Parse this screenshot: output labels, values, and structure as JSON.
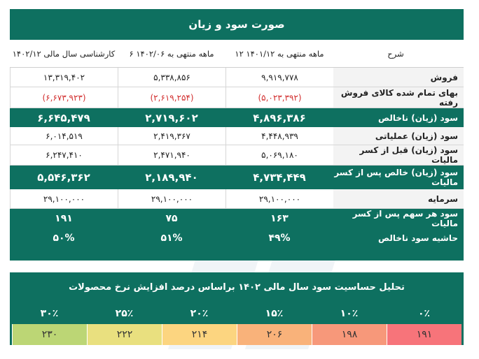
{
  "pl": {
    "title": "صورت سود و زیان",
    "headers": {
      "label": "شرح",
      "col1": "۱۲ ماهه منتهی به ۱۴۰۱/۱۲",
      "col2": "۶ ماهه منتهی به ۱۴۰۲/۰۶",
      "col3": "کارشناسی سال مالی ۱۴۰۲/۱۲"
    },
    "rows": [
      {
        "label": "فروش",
        "v1": "۹,۹۱۹,۷۷۸",
        "v2": "۵,۳۳۸,۸۵۶",
        "v3": "۱۳,۳۱۹,۴۰۲"
      },
      {
        "label": "بهای تمام شده کالای فروش رفته",
        "v1": "(۵,۰۲۳,۳۹۲)",
        "v2": "(۲,۶۱۹,۲۵۴)",
        "v3": "(۶,۶۷۳,۹۲۳)"
      },
      {
        "label": "سود (زیان) ناخالص",
        "v1": "۴,۸۹۶,۳۸۶",
        "v2": "۲,۷۱۹,۶۰۲",
        "v3": "۶,۶۴۵,۴۷۹"
      },
      {
        "label": "سود (زیان) عملیاتی",
        "v1": "۴,۴۴۸,۹۳۹",
        "v2": "۲,۴۱۹,۳۶۷",
        "v3": "۶,۰۱۴,۵۱۹"
      },
      {
        "label": "سود (زیان) قبل از کسر مالیات",
        "v1": "۵,۰۶۹,۱۸۰",
        "v2": "۲,۴۷۱,۹۴۰",
        "v3": "۶,۲۴۷,۴۱۰"
      },
      {
        "label": "سود (زیان) خالص پس از کسر مالیات",
        "v1": "۴,۷۳۴,۴۴۹",
        "v2": "۲,۱۸۹,۹۴۰",
        "v3": "۵,۵۴۶,۳۶۲"
      },
      {
        "label": "سرمایه",
        "v1": "۲۹,۱۰۰,۰۰۰",
        "v2": "۲۹,۱۰۰,۰۰۰",
        "v3": "۲۹,۱۰۰,۰۰۰"
      },
      {
        "label": "سود هر سهم پس از کسر مالیات",
        "v1": "۱۶۳",
        "v2": "۷۵",
        "v3": "۱۹۱"
      },
      {
        "label": "حاشیه سود ناخالص",
        "v1": "۴۹%",
        "v2": "۵۱%",
        "v3": "۵۰%"
      }
    ]
  },
  "sensitivity": {
    "title": "تحلیل حساسیت سود سال مالی ۱۴۰۲ براساس درصد افزایش نرخ محصولات",
    "percents": [
      "۰٪",
      "۱۰٪",
      "۱۵٪",
      "۲۰٪",
      "۲۵٪",
      "۳۰٪"
    ],
    "values": [
      "۱۹۱",
      "۱۹۸",
      "۲۰۶",
      "۲۱۴",
      "۲۲۲",
      "۲۳۰"
    ],
    "colors": [
      "#f7747a",
      "#f7987a",
      "#f9b27a",
      "#fcd580",
      "#e9e07f",
      "#bcd675"
    ]
  },
  "colors": {
    "header_green": "#0e7060",
    "negative_red": "#d22f2f"
  }
}
